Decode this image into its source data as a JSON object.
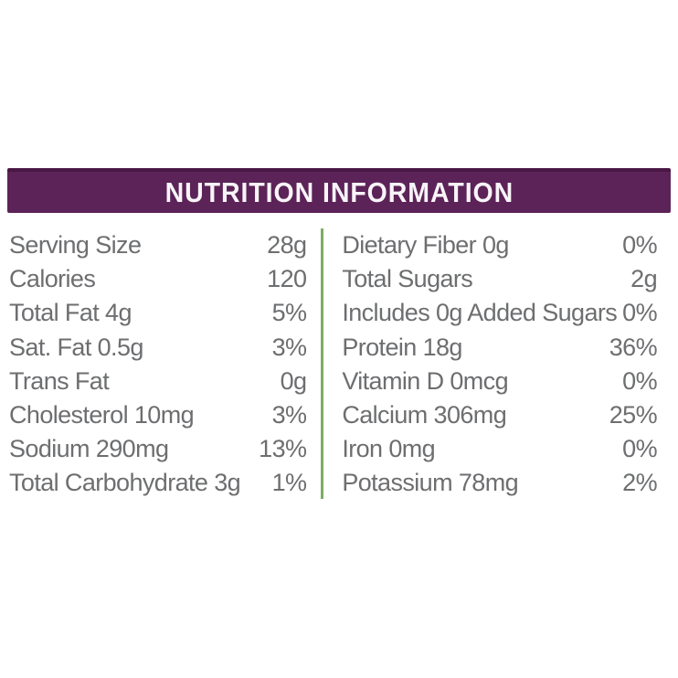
{
  "header": {
    "title": "NUTRITION INFORMATION"
  },
  "colors": {
    "header_bg": "#5c2358",
    "header_bg_dark": "#4a1745",
    "divider_green": "#7cad63",
    "text_gray": "#6d6e70",
    "title_white": "#f8f4f8"
  },
  "left_column": {
    "rows": [
      {
        "label": "Serving Size",
        "value": "28g"
      },
      {
        "label": "Calories",
        "value": "120"
      },
      {
        "label": "Total Fat 4g",
        "value": "5%"
      },
      {
        "label": "Sat. Fat 0.5g",
        "value": "3%"
      },
      {
        "label": "Trans Fat",
        "value": "0g"
      },
      {
        "label": "Cholesterol 10mg",
        "value": "3%"
      },
      {
        "label": "Sodium 290mg",
        "value": "13%"
      },
      {
        "label": "Total Carbohydrate 3g",
        "value": "1%"
      }
    ]
  },
  "right_column": {
    "rows": [
      {
        "label": "Dietary Fiber 0g",
        "value": "0%"
      },
      {
        "label": "Total Sugars",
        "value": "2g"
      },
      {
        "label": "Includes 0g Added Sugars",
        "value": "0%"
      },
      {
        "label": "Protein 18g",
        "value": "36%"
      },
      {
        "label": "Vitamin D 0mcg",
        "value": "0%"
      },
      {
        "label": "Calcium 306mg",
        "value": "25%"
      },
      {
        "label": "Iron 0mg",
        "value": "0%"
      },
      {
        "label": "Potassium 78mg",
        "value": "2%"
      }
    ]
  }
}
